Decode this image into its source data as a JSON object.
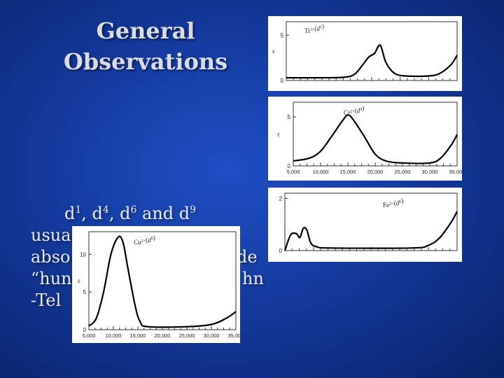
{
  "slide": {
    "title_line1": "General",
    "title_line2": "Observations",
    "body": {
      "line1_parts": [
        "d",
        "1",
        ", d",
        "4",
        ", d",
        "6",
        " and d",
        "9"
      ],
      "line2": "usua",
      "line2_tail": "",
      "line3": "abso",
      "line3_tail": "de",
      "line4": "“hun",
      "line4_tail": "hn",
      "line5": "-Tel"
    }
  },
  "colors": {
    "title": "#d9dce2",
    "body_text": "#e8ebf0",
    "background": "#173fa8",
    "curve": "#000000"
  },
  "chart_data": [
    {
      "type": "line",
      "ion_label": "Ti3+(d1)",
      "ylabel": "ε",
      "y_ticks": [
        "0",
        "5"
      ],
      "x_tick_labels_shown": false,
      "points": [
        [
          5000,
          0.3
        ],
        [
          10000,
          0.3
        ],
        [
          15000,
          0.35
        ],
        [
          17000,
          0.7
        ],
        [
          18500,
          1.8
        ],
        [
          19500,
          2.6
        ],
        [
          20500,
          3.0
        ],
        [
          21500,
          3.9
        ],
        [
          22500,
          2.0
        ],
        [
          24000,
          0.8
        ],
        [
          26000,
          0.5
        ],
        [
          30000,
          0.5
        ],
        [
          32000,
          0.8
        ],
        [
          34000,
          1.8
        ],
        [
          35000,
          2.8
        ]
      ]
    },
    {
      "type": "line",
      "ion_label": "Cr2+(d4)",
      "ylabel": "ε",
      "y_ticks": [
        "0",
        "5"
      ],
      "x_tick_labels": [
        "5,000",
        "10,000",
        "15,000",
        "20,000",
        "25,000",
        "30,000",
        "35,000"
      ],
      "points": [
        [
          5000,
          0.5
        ],
        [
          8000,
          0.8
        ],
        [
          10000,
          1.5
        ],
        [
          12000,
          3.0
        ],
        [
          14000,
          4.6
        ],
        [
          15000,
          5.2
        ],
        [
          16000,
          4.7
        ],
        [
          18000,
          3.0
        ],
        [
          20000,
          1.2
        ],
        [
          22000,
          0.5
        ],
        [
          25000,
          0.3
        ],
        [
          30000,
          0.3
        ],
        [
          32000,
          0.8
        ],
        [
          34000,
          2.2
        ],
        [
          35000,
          3.2
        ]
      ]
    },
    {
      "type": "line",
      "ion_label": "Fe2+(d6)",
      "ylabel": "",
      "y_ticks": [
        "0",
        "2"
      ],
      "x_tick_labels_shown": false,
      "points": [
        [
          5000,
          0.0
        ],
        [
          6000,
          0.6
        ],
        [
          7000,
          0.65
        ],
        [
          7600,
          0.5
        ],
        [
          8200,
          0.85
        ],
        [
          8800,
          0.8
        ],
        [
          9500,
          0.3
        ],
        [
          10500,
          0.15
        ],
        [
          13000,
          0.1
        ],
        [
          27000,
          0.1
        ],
        [
          30000,
          0.2
        ],
        [
          32000,
          0.5
        ],
        [
          34000,
          1.1
        ],
        [
          35000,
          1.5
        ]
      ]
    },
    {
      "type": "line",
      "ion_label": "Cu2+(d9)",
      "ylabel": "ε",
      "y_ticks": [
        "0",
        "5",
        "10"
      ],
      "x_tick_labels": [
        "5,000",
        "10,000",
        "15,000",
        "20,000",
        "25,000",
        "30,000",
        "35,000"
      ],
      "points": [
        [
          5000,
          0.5
        ],
        [
          6500,
          1.5
        ],
        [
          8000,
          5.0
        ],
        [
          9500,
          10.0
        ],
        [
          11000,
          12.3
        ],
        [
          12000,
          11.5
        ],
        [
          13000,
          8.0
        ],
        [
          14500,
          3.0
        ],
        [
          15500,
          1.0
        ],
        [
          17000,
          0.4
        ],
        [
          25000,
          0.4
        ],
        [
          30000,
          0.7
        ],
        [
          33000,
          1.5
        ],
        [
          35000,
          2.4
        ]
      ]
    }
  ]
}
